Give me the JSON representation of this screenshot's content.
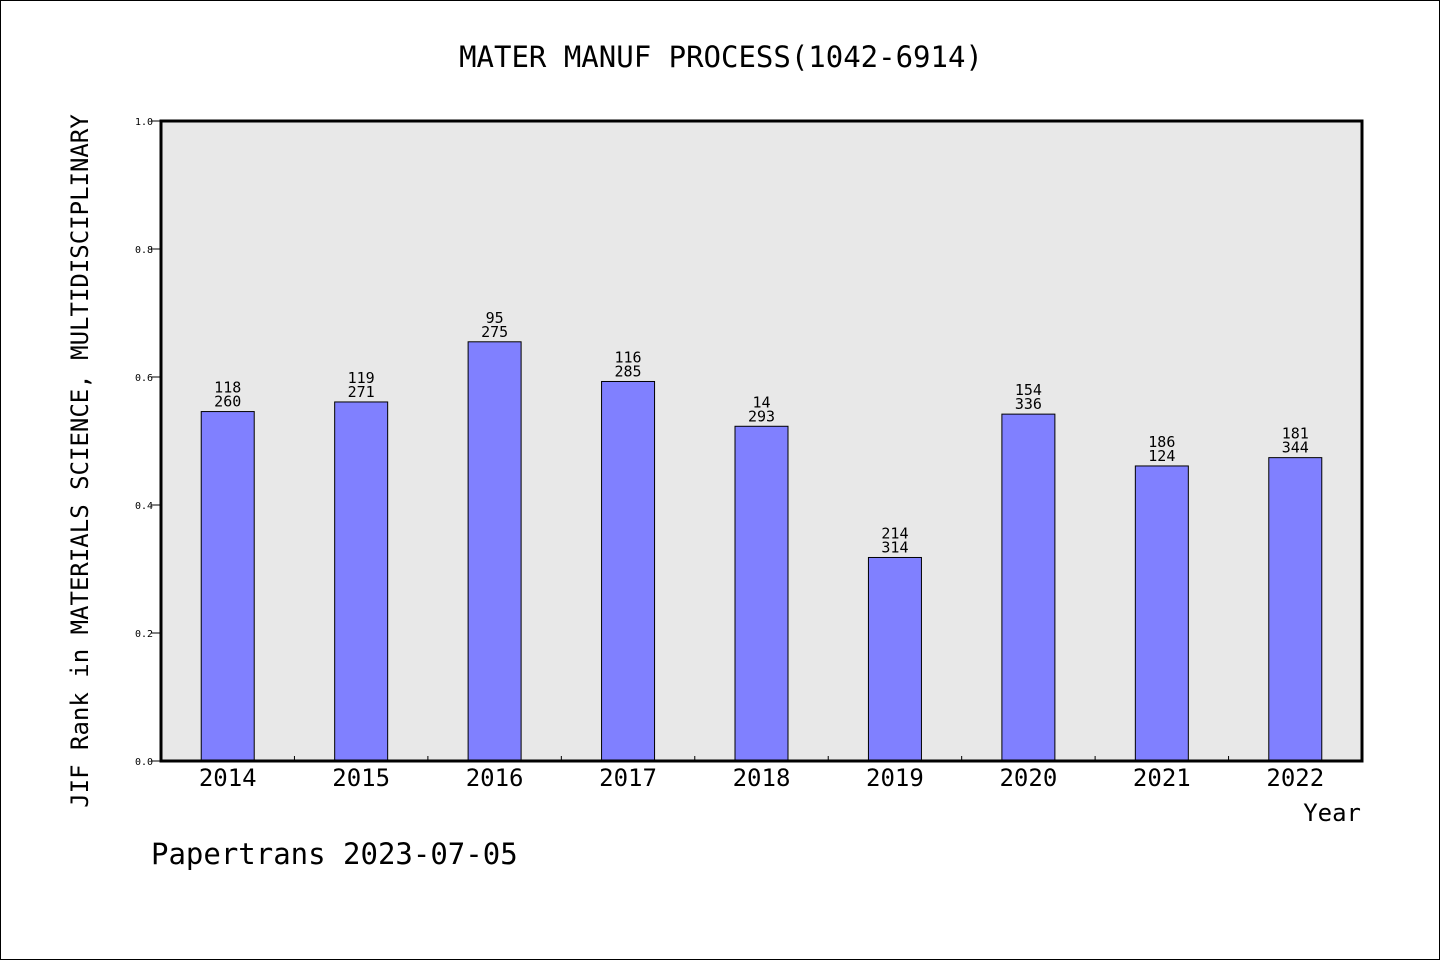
{
  "chart_data": {
    "type": "bar",
    "title": "MATER MANUF PROCESS(1042-6914)",
    "xlabel": "Year",
    "ylabel": "JIF Rank in MATERIALS SCIENCE, MULTIDISCIPLINARY",
    "ylim": [
      0.0,
      1.0
    ],
    "yticks": [
      "0.0",
      "0.2",
      "0.4",
      "0.6",
      "0.8",
      "1.0"
    ],
    "categories": [
      "2014",
      "2015",
      "2016",
      "2017",
      "2018",
      "2019",
      "2020",
      "2021",
      "2022"
    ],
    "values": [
      0.546,
      0.561,
      0.655,
      0.593,
      0.523,
      0.318,
      0.542,
      0.461,
      0.474
    ],
    "labels_top": [
      "118",
      "119",
      "95",
      "116",
      "14",
      "214",
      "154",
      "186",
      "181"
    ],
    "labels_bottom": [
      "260",
      "271",
      "275",
      "285",
      "293",
      "314",
      "336",
      "124",
      "344"
    ],
    "grid": false,
    "legend": "none",
    "bar_color": "#8080ff",
    "plot_background": "#e8e8e8"
  },
  "footer": "Papertrans 2023-07-05"
}
